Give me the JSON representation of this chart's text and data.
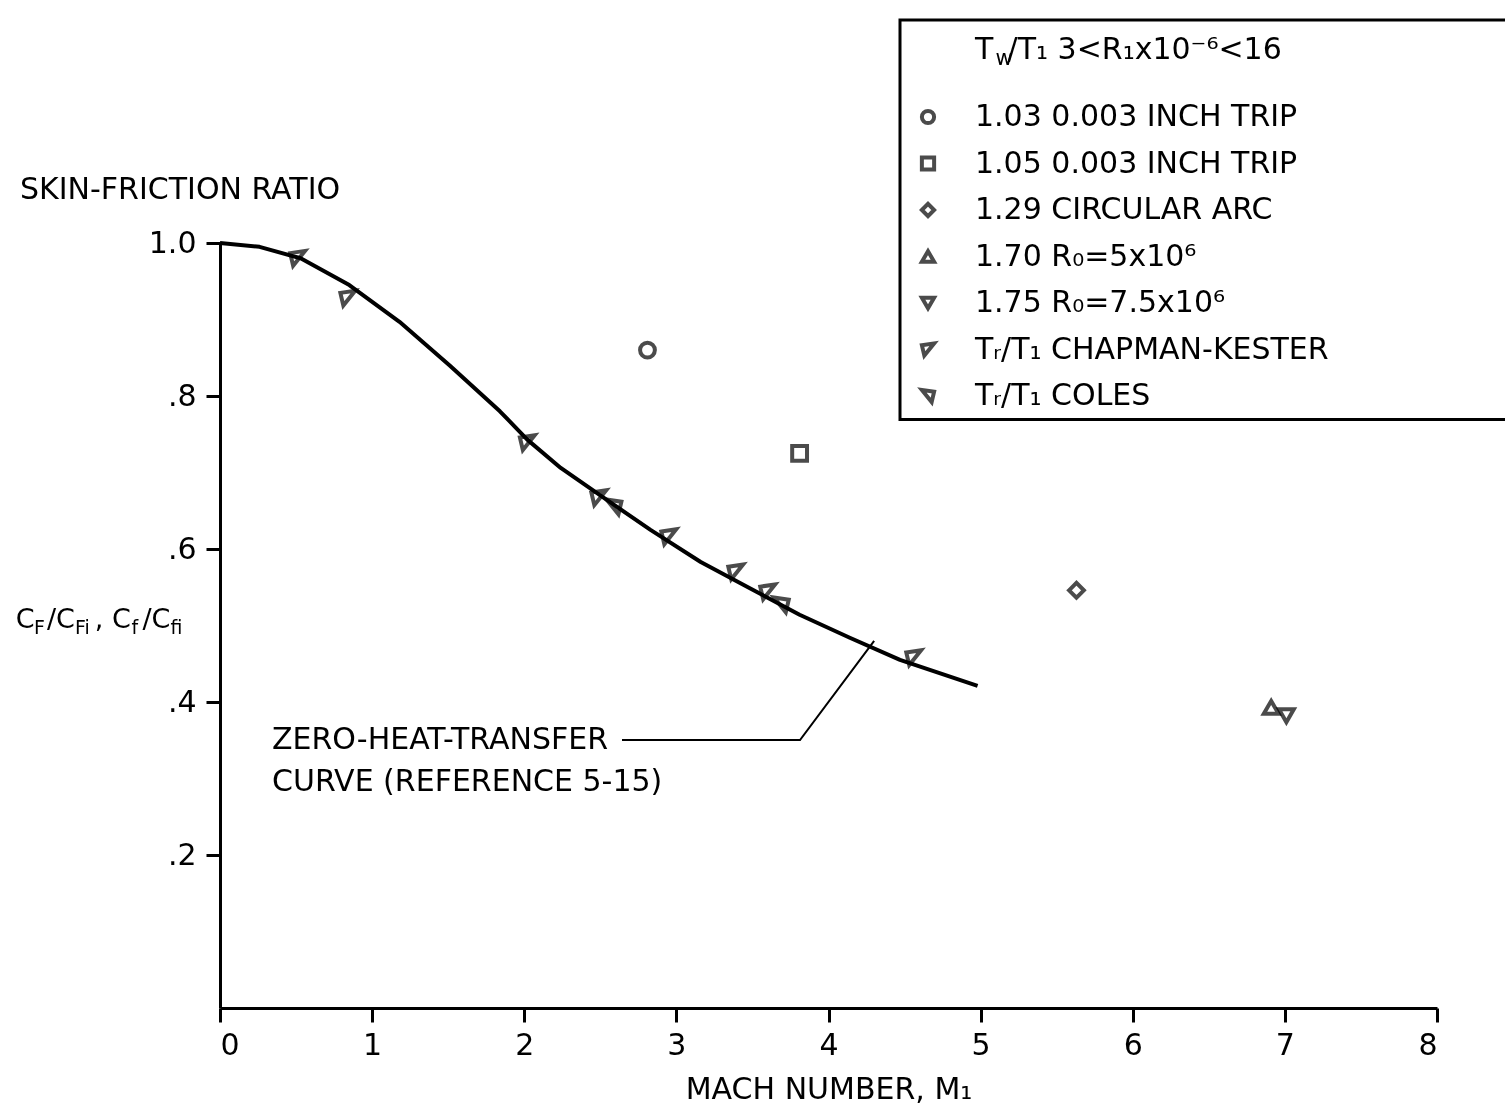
{
  "chart_data": {
    "type": "scatter",
    "xlabel": "MACH NUMBER, M₁",
    "ylabel": "SKIN-FRICTION RATIO",
    "legend_title": "T$_{w}$/T₁  3<R₁x10⁻⁶<16",
    "xlim": [
      0,
      8
    ],
    "xticks": [
      0,
      1,
      2,
      3,
      4,
      5,
      6,
      7,
      8
    ],
    "ylim": [
      0,
      1.0
    ],
    "yticks": [
      {
        "value": 0.2,
        "label": ".2"
      },
      {
        "value": 0.4,
        "label": ".4"
      },
      {
        "value": 0.6,
        "label": ".6"
      },
      {
        "value": 0.8,
        "label": ".8"
      },
      {
        "value": 1.0,
        "label": "1.0"
      }
    ],
    "grid": false,
    "legend": "top right",
    "series": [
      {
        "type": "line",
        "color": "#000000",
        "marker": "none",
        "line_style": "solid",
        "x": [
          0,
          0.26,
          0.53,
          0.85,
          1.18,
          1.51,
          1.84,
          2.02,
          2.24,
          2.5,
          2.83,
          3.16,
          3.48,
          3.81,
          4.14,
          4.47,
          4.98
        ],
        "values": [
          1.0,
          0.995,
          0.98,
          0.945,
          0.897,
          0.84,
          0.78,
          0.743,
          0.706,
          0.67,
          0.625,
          0.583,
          0.549,
          0.514,
          0.484,
          0.455,
          0.421
        ]
      },
      {
        "name": "1.03   0.003 INCH TRIP",
        "color": "#000000",
        "marker": "circle",
        "x": [
          2.81
        ],
        "values": [
          0.86
        ]
      },
      {
        "name": "1.05   0.003 INCH TRIP",
        "color": "#000000",
        "marker": "square",
        "x": [
          3.81
        ],
        "values": [
          0.725
        ]
      },
      {
        "name": "1.29   CIRCULAR ARC",
        "color": "#000000",
        "marker": "diamond",
        "x": [
          5.63
        ],
        "values": [
          0.546
        ]
      },
      {
        "name": "1.70   R₀=5x10⁶",
        "color": "#000000",
        "marker": "triangle-up",
        "x": [
          6.91
        ],
        "values": [
          0.393
        ]
      },
      {
        "name": "1.75   R₀=7.5x10⁶",
        "color": "#000000",
        "marker": "triangle-down",
        "x": [
          7.01
        ],
        "values": [
          0.382
        ]
      },
      {
        "name": "Tᵣ/T₁   CHAPMAN-KESTER",
        "color": "#000000",
        "marker": "triangle-left",
        "x": [
          0.51,
          0.84,
          2.02,
          2.49,
          2.95,
          3.39,
          3.6,
          4.56
        ],
        "values": [
          0.98,
          0.928,
          0.739,
          0.667,
          0.616,
          0.57,
          0.544,
          0.458
        ]
      },
      {
        "name": "Tᵣ/T₁   COLES",
        "color": "#000000",
        "marker": "triangle-right",
        "x": [
          2.59,
          3.69
        ],
        "values": [
          0.655,
          0.527
        ]
      }
    ],
    "annotations": [
      {
        "text": "ZERO-HEAT-TRANSFER\nCURVE (REFERENCE 5-15)",
        "x": 4.3,
        "y": 0.48
      },
      "C$_{F}$/C$_{Fi}$, C$_{f}$/C$_{fi}$"
    ]
  }
}
